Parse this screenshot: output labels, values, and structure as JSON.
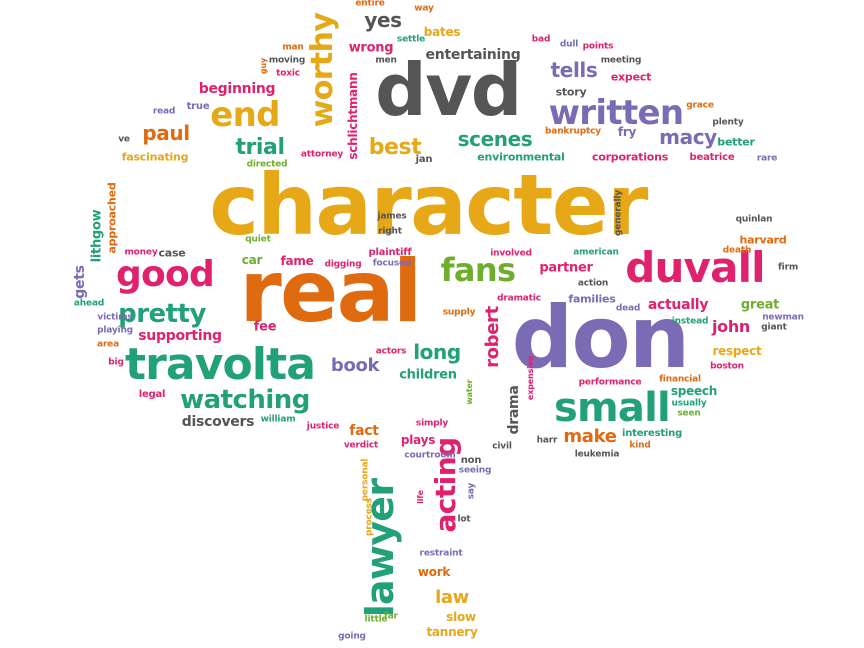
{
  "colors": {
    "yellow": "#e6a817",
    "orange": "#e06a10",
    "pink": "#e0226e",
    "purple": "#7b6bb4",
    "green": "#22a07a",
    "gray": "#555555",
    "lime": "#6fae2c"
  },
  "words": [
    {
      "id": "character",
      "text": "character",
      "color": "yellow",
      "rot": 0
    },
    {
      "id": "real",
      "text": "real",
      "color": "orange",
      "rot": 0
    },
    {
      "id": "don",
      "text": "don",
      "color": "purple",
      "rot": 0
    },
    {
      "id": "dvd",
      "text": "dvd",
      "color": "gray",
      "rot": 0
    },
    {
      "id": "duvall",
      "text": "duvall",
      "color": "pink",
      "rot": 0
    },
    {
      "id": "travolta",
      "text": "travolta",
      "color": "green",
      "rot": 0
    },
    {
      "id": "lawyer",
      "text": "lawyer",
      "color": "green",
      "rot": 90
    },
    {
      "id": "small",
      "text": "small",
      "color": "green",
      "rot": 0
    },
    {
      "id": "good",
      "text": "good",
      "color": "pink",
      "rot": 0
    },
    {
      "id": "written",
      "text": "written",
      "color": "purple",
      "rot": 0
    },
    {
      "id": "end",
      "text": "end",
      "color": "yellow",
      "rot": 0
    },
    {
      "id": "worthy",
      "text": "worthy",
      "color": "yellow",
      "rot": 90
    },
    {
      "id": "fans",
      "text": "fans",
      "color": "lime",
      "rot": 0
    },
    {
      "id": "watching",
      "text": "watching",
      "color": "green",
      "rot": 0
    },
    {
      "id": "pretty",
      "text": "pretty",
      "color": "green",
      "rot": 0
    },
    {
      "id": "acting",
      "text": "acting",
      "color": "pink",
      "rot": 90
    },
    {
      "id": "scenes",
      "text": "scenes",
      "color": "green",
      "rot": 0
    },
    {
      "id": "best",
      "text": "best",
      "color": "yellow",
      "rot": 0
    },
    {
      "id": "trial",
      "text": "trial",
      "color": "green",
      "rot": 0
    },
    {
      "id": "paul",
      "text": "paul",
      "color": "orange",
      "rot": 0
    },
    {
      "id": "tells",
      "text": "tells",
      "color": "purple",
      "rot": 0
    },
    {
      "id": "macy",
      "text": "macy",
      "color": "purple",
      "rot": 0
    },
    {
      "id": "yes",
      "text": "yes",
      "color": "gray",
      "rot": 0
    },
    {
      "id": "book",
      "text": "book",
      "color": "purple",
      "rot": 0
    },
    {
      "id": "long",
      "text": "long",
      "color": "green",
      "rot": 0
    },
    {
      "id": "make",
      "text": "make",
      "color": "orange",
      "rot": 0
    },
    {
      "id": "robert",
      "text": "robert",
      "color": "pink",
      "rot": 90
    },
    {
      "id": "law",
      "text": "law",
      "color": "yellow",
      "rot": 0
    },
    {
      "id": "drama",
      "text": "drama",
      "color": "gray",
      "rot": 90
    },
    {
      "id": "gets",
      "text": "gets",
      "color": "purple",
      "rot": 90
    },
    {
      "id": "entertaining",
      "text": "entertaining",
      "color": "gray",
      "rot": 0
    },
    {
      "id": "beginning",
      "text": "beginning",
      "color": "pink",
      "rot": 0
    },
    {
      "id": "wrong",
      "text": "wrong",
      "color": "pink",
      "rot": 0
    },
    {
      "id": "bates",
      "text": "bates",
      "color": "yellow",
      "rot": 0
    },
    {
      "id": "schlichtmann",
      "text": "schlichtmann",
      "color": "pink",
      "rot": 90
    },
    {
      "id": "story",
      "text": "story",
      "color": "gray",
      "rot": 0
    },
    {
      "id": "expect",
      "text": "expect",
      "color": "pink",
      "rot": 0
    },
    {
      "id": "fascinating",
      "text": "fascinating",
      "color": "yellow",
      "rot": 0
    },
    {
      "id": "environmental",
      "text": "environmental",
      "color": "green",
      "rot": 0
    },
    {
      "id": "corporations",
      "text": "corporations",
      "color": "pink",
      "rot": 0
    },
    {
      "id": "beatrice",
      "text": "beatrice",
      "color": "pink",
      "rot": 0
    },
    {
      "id": "fry",
      "text": "fry",
      "color": "purple",
      "rot": 0
    },
    {
      "id": "better",
      "text": "better",
      "color": "green",
      "rot": 0
    },
    {
      "id": "car",
      "text": "car",
      "color": "lime",
      "rot": 0
    },
    {
      "id": "fame",
      "text": "fame",
      "color": "pink",
      "rot": 0
    },
    {
      "id": "plaintiff",
      "text": "plaintiff",
      "color": "pink",
      "rot": 0
    },
    {
      "id": "partner",
      "text": "partner",
      "color": "pink",
      "rot": 0
    },
    {
      "id": "harvard",
      "text": "harvard",
      "color": "orange",
      "rot": 0
    },
    {
      "id": "actually",
      "text": "actually",
      "color": "pink",
      "rot": 0
    },
    {
      "id": "great",
      "text": "great",
      "color": "lime",
      "rot": 0
    },
    {
      "id": "john",
      "text": "john",
      "color": "pink",
      "rot": 0
    },
    {
      "id": "supporting",
      "text": "supporting",
      "color": "pink",
      "rot": 0
    },
    {
      "id": "fee",
      "text": "fee",
      "color": "pink",
      "rot": 0
    },
    {
      "id": "children",
      "text": "children",
      "color": "green",
      "rot": 0
    },
    {
      "id": "families",
      "text": "families",
      "color": "purple",
      "rot": 0
    },
    {
      "id": "respect",
      "text": "respect",
      "color": "yellow",
      "rot": 0
    },
    {
      "id": "speech",
      "text": "speech",
      "color": "green",
      "rot": 0
    },
    {
      "id": "discovers",
      "text": "discovers",
      "color": "gray",
      "rot": 0
    },
    {
      "id": "fact",
      "text": "fact",
      "color": "orange",
      "rot": 0
    },
    {
      "id": "plays",
      "text": "plays",
      "color": "pink",
      "rot": 0
    },
    {
      "id": "work",
      "text": "work",
      "color": "orange",
      "rot": 0
    },
    {
      "id": "slow",
      "text": "slow",
      "color": "yellow",
      "rot": 0
    },
    {
      "id": "tannery",
      "text": "tannery",
      "color": "yellow",
      "rot": 0
    },
    {
      "id": "lithgow",
      "text": "lithgow",
      "color": "green",
      "rot": 90
    },
    {
      "id": "approached",
      "text": "approached",
      "color": "orange",
      "rot": 90
    },
    {
      "id": "legal",
      "text": "legal",
      "color": "pink",
      "rot": 0
    },
    {
      "id": "case",
      "text": "case",
      "color": "gray",
      "rot": 0
    },
    {
      "id": "entire",
      "text": "entire",
      "color": "orange",
      "rot": 0
    },
    {
      "id": "way",
      "text": "way",
      "color": "orange",
      "rot": 0
    },
    {
      "id": "bad",
      "text": "bad",
      "color": "pink",
      "rot": 0
    },
    {
      "id": "dull",
      "text": "dull",
      "color": "purple",
      "rot": 0
    },
    {
      "id": "points",
      "text": "points",
      "color": "pink",
      "rot": 0
    },
    {
      "id": "meeting",
      "text": "meeting",
      "color": "gray",
      "rot": 0
    },
    {
      "id": "settle",
      "text": "settle",
      "color": "green",
      "rot": 0
    },
    {
      "id": "men",
      "text": "men",
      "color": "gray",
      "rot": 0
    },
    {
      "id": "man",
      "text": "man",
      "color": "orange",
      "rot": 0
    },
    {
      "id": "moving",
      "text": "moving",
      "color": "gray",
      "rot": 0
    },
    {
      "id": "toxic",
      "text": "toxic",
      "color": "pink",
      "rot": 0
    },
    {
      "id": "guy",
      "text": "guy",
      "color": "orange",
      "rot": 90
    },
    {
      "id": "read",
      "text": "read",
      "color": "purple",
      "rot": 0
    },
    {
      "id": "true",
      "text": "true",
      "color": "purple",
      "rot": 0
    },
    {
      "id": "ve",
      "text": "ve",
      "color": "gray",
      "rot": 0
    },
    {
      "id": "grace",
      "text": "grace",
      "color": "orange",
      "rot": 0
    },
    {
      "id": "plenty",
      "text": "plenty",
      "color": "gray",
      "rot": 0
    },
    {
      "id": "bankruptcy",
      "text": "bankruptcy",
      "color": "orange",
      "rot": 0
    },
    {
      "id": "rare",
      "text": "rare",
      "color": "purple",
      "rot": 0
    },
    {
      "id": "directed",
      "text": "directed",
      "color": "lime",
      "rot": 0
    },
    {
      "id": "attorney",
      "text": "attorney",
      "color": "pink",
      "rot": 0
    },
    {
      "id": "jan",
      "text": "jan",
      "color": "gray",
      "rot": 0
    },
    {
      "id": "james",
      "text": "james",
      "color": "gray",
      "rot": 0
    },
    {
      "id": "right",
      "text": "right",
      "color": "gray",
      "rot": 0
    },
    {
      "id": "quiet",
      "text": "quiet",
      "color": "lime",
      "rot": 0
    },
    {
      "id": "generally",
      "text": "generally",
      "color": "gray",
      "rot": 90
    },
    {
      "id": "quinlan",
      "text": "quinlan",
      "color": "gray",
      "rot": 0
    },
    {
      "id": "death",
      "text": "death",
      "color": "orange",
      "rot": 0
    },
    {
      "id": "money",
      "text": "money",
      "color": "pink",
      "rot": 0
    },
    {
      "id": "involved",
      "text": "involved",
      "color": "pink",
      "rot": 0
    },
    {
      "id": "american",
      "text": "american",
      "color": "green",
      "rot": 0
    },
    {
      "id": "digging",
      "text": "digging",
      "color": "pink",
      "rot": 0
    },
    {
      "id": "focused",
      "text": "focused",
      "color": "purple",
      "rot": 0
    },
    {
      "id": "action",
      "text": "action",
      "color": "gray",
      "rot": 0
    },
    {
      "id": "firm",
      "text": "firm",
      "color": "gray",
      "rot": 0
    },
    {
      "id": "ahead",
      "text": "ahead",
      "color": "green",
      "rot": 0
    },
    {
      "id": "dramatic",
      "text": "dramatic",
      "color": "pink",
      "rot": 0
    },
    {
      "id": "dead",
      "text": "dead",
      "color": "purple",
      "rot": 0
    },
    {
      "id": "supply",
      "text": "supply",
      "color": "orange",
      "rot": 0
    },
    {
      "id": "victims",
      "text": "victims",
      "color": "purple",
      "rot": 0
    },
    {
      "id": "newman",
      "text": "newman",
      "color": "purple",
      "rot": 0
    },
    {
      "id": "giant",
      "text": "giant",
      "color": "gray",
      "rot": 0
    },
    {
      "id": "instead",
      "text": "instead",
      "color": "green",
      "rot": 0
    },
    {
      "id": "playing",
      "text": "playing",
      "color": "purple",
      "rot": 0
    },
    {
      "id": "area",
      "text": "area",
      "color": "orange",
      "rot": 0
    },
    {
      "id": "big",
      "text": "big",
      "color": "pink",
      "rot": 0
    },
    {
      "id": "actors",
      "text": "actors",
      "color": "pink",
      "rot": 0
    },
    {
      "id": "performance",
      "text": "performance",
      "color": "pink",
      "rot": 0
    },
    {
      "id": "financial",
      "text": "financial",
      "color": "orange",
      "rot": 0
    },
    {
      "id": "boston",
      "text": "boston",
      "color": "pink",
      "rot": 0
    },
    {
      "id": "usually",
      "text": "usually",
      "color": "green",
      "rot": 0
    },
    {
      "id": "seen",
      "text": "seen",
      "color": "lime",
      "rot": 0
    },
    {
      "id": "william",
      "text": "william",
      "color": "green",
      "rot": 0
    },
    {
      "id": "justice",
      "text": "justice",
      "color": "pink",
      "rot": 0
    },
    {
      "id": "simply",
      "text": "simply",
      "color": "pink",
      "rot": 0
    },
    {
      "id": "water",
      "text": "water",
      "color": "lime",
      "rot": 90
    },
    {
      "id": "expensive",
      "text": "expensive",
      "color": "pink",
      "rot": 90
    },
    {
      "id": "interesting",
      "text": "interesting",
      "color": "green",
      "rot": 0
    },
    {
      "id": "kind",
      "text": "kind",
      "color": "orange",
      "rot": 0
    },
    {
      "id": "harr",
      "text": "harr",
      "color": "gray",
      "rot": 0
    },
    {
      "id": "civil",
      "text": "civil",
      "color": "gray",
      "rot": 0
    },
    {
      "id": "leukemia",
      "text": "leukemia",
      "color": "gray",
      "rot": 0
    },
    {
      "id": "verdict",
      "text": "verdict",
      "color": "pink",
      "rot": 0
    },
    {
      "id": "courtroom",
      "text": "courtroom",
      "color": "purple",
      "rot": 0
    },
    {
      "id": "non",
      "text": "non",
      "color": "gray",
      "rot": 0
    },
    {
      "id": "seeing",
      "text": "seeing",
      "color": "purple",
      "rot": 0
    },
    {
      "id": "personal",
      "text": "personal",
      "color": "yellow",
      "rot": 90
    },
    {
      "id": "life",
      "text": "life",
      "color": "pink",
      "rot": 90
    },
    {
      "id": "say",
      "text": "say",
      "color": "purple",
      "rot": 90
    },
    {
      "id": "process",
      "text": "process",
      "color": "yellow",
      "rot": 90
    },
    {
      "id": "lot",
      "text": "lot",
      "color": "gray",
      "rot": 0
    },
    {
      "id": "restraint",
      "text": "restraint",
      "color": "purple",
      "rot": 0
    },
    {
      "id": "little",
      "text": "little",
      "color": "lime",
      "rot": 0
    },
    {
      "id": "far",
      "text": "far",
      "color": "lime",
      "rot": 0
    },
    {
      "id": "going",
      "text": "going",
      "color": "purple",
      "rot": 0
    }
  ]
}
